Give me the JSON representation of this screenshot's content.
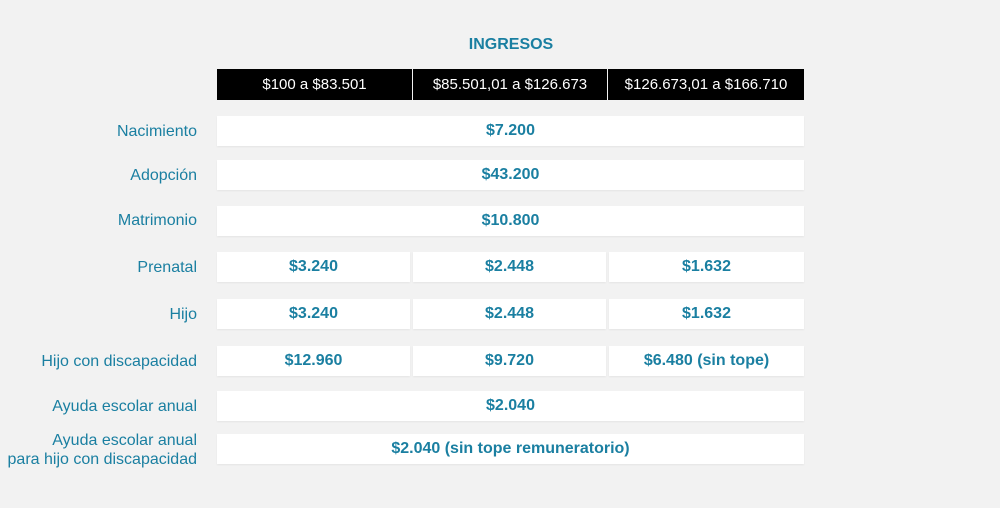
{
  "title": "INGRESOS",
  "columns": [
    "$100 a $83.501",
    "$85.501,01 a $126.673",
    "$126.673,01 a $166.710"
  ],
  "rows": {
    "nacimiento": {
      "label": "Nacimiento",
      "value": "$7.200"
    },
    "adopcion": {
      "label": "Adopción",
      "value": "$43.200"
    },
    "matrimonio": {
      "label": "Matrimonio",
      "value": "$10.800"
    },
    "prenatal": {
      "label": "Prenatal",
      "values": [
        "$3.240",
        "$2.448",
        "$1.632"
      ]
    },
    "hijo": {
      "label": "Hijo",
      "values": [
        "$3.240",
        "$2.448",
        "$1.632"
      ]
    },
    "hijo_discapacidad": {
      "label": "Hijo con discapacidad",
      "values": [
        "$12.960",
        "$9.720",
        "$6.480  (sin tope)"
      ]
    },
    "ayuda_escolar": {
      "label": "Ayuda escolar anual",
      "value": "$2.040"
    },
    "ayuda_escolar_discapacidad": {
      "label_line1": "Ayuda escolar anual",
      "label_line2": "para hijo con discapacidad",
      "value": "$2.040 (sin tope remuneratorio)"
    }
  },
  "colors": {
    "accent": "#1a7fa1",
    "header_bg": "#000000",
    "background": "#f2f2f2"
  }
}
